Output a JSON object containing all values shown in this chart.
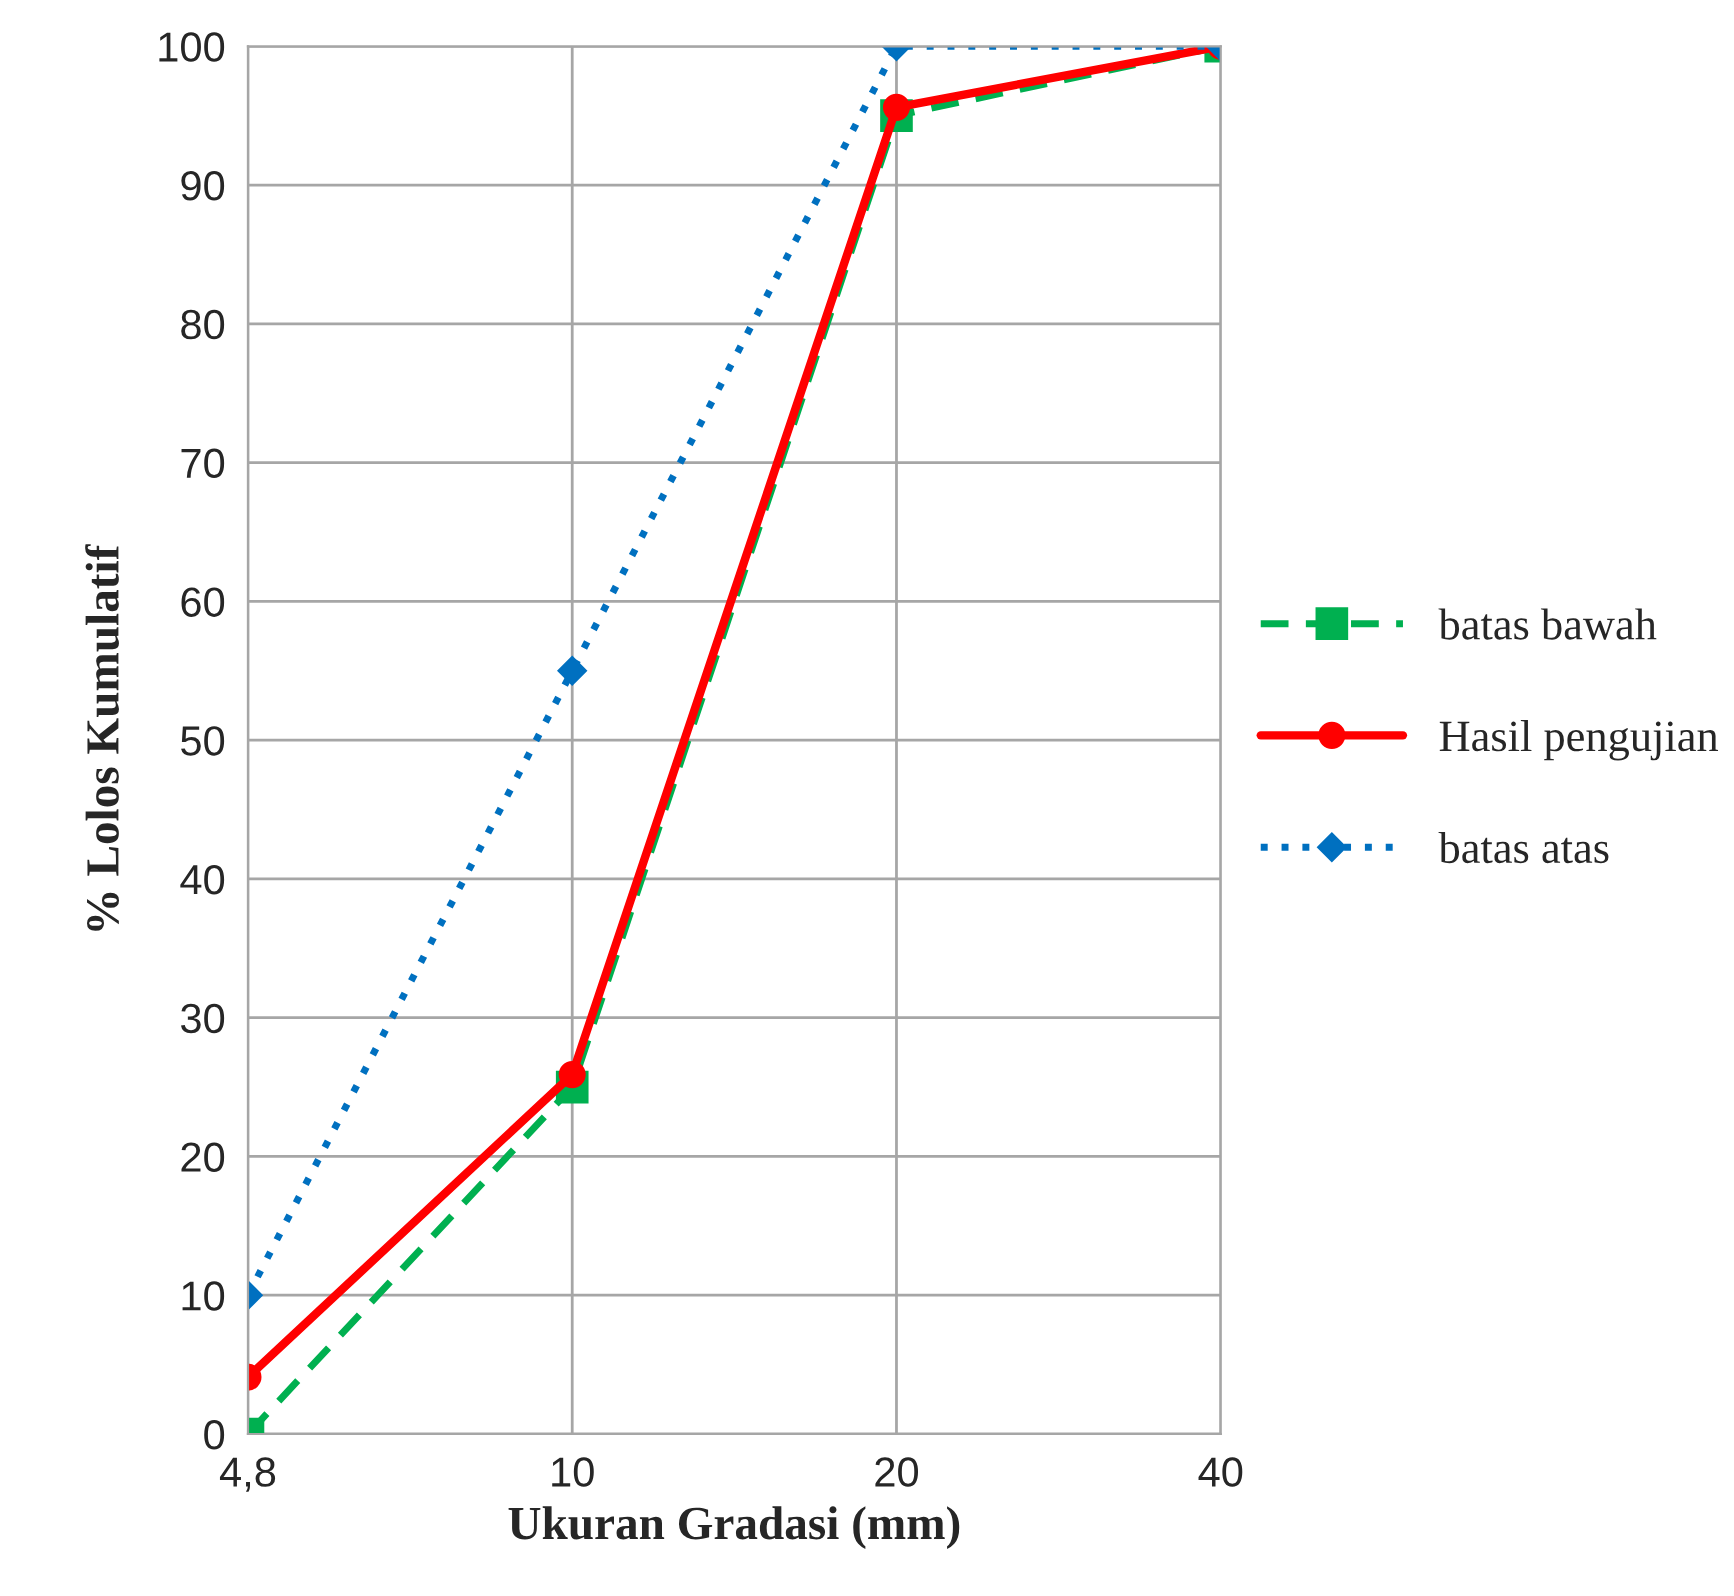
{
  "chart_data": {
    "type": "line",
    "xlabel": "Ukuran Gradasi (mm)",
    "ylabel": "% Lolos Kumulatif",
    "categories": [
      "4,8",
      "10",
      "20",
      "40"
    ],
    "series": [
      {
        "name": "batas bawah",
        "color": "#00b050",
        "values": [
          0,
          25,
          95,
          100
        ],
        "marker": "square",
        "line_style": "dashed"
      },
      {
        "name": "Hasil pengujian",
        "color": "#ff0000",
        "values": [
          4.1,
          25.9,
          95.6,
          100
        ],
        "marker": "circle",
        "line_style": "solid"
      },
      {
        "name": "batas atas",
        "color": "#0070c0",
        "values": [
          10,
          55,
          100,
          100
        ],
        "marker": "diamond",
        "line_style": "dotted"
      }
    ],
    "ylim": [
      0,
      100
    ],
    "yticks": [
      0,
      10,
      20,
      30,
      40,
      50,
      60,
      70,
      80,
      90,
      100
    ],
    "grid": true,
    "legend": "right"
  }
}
